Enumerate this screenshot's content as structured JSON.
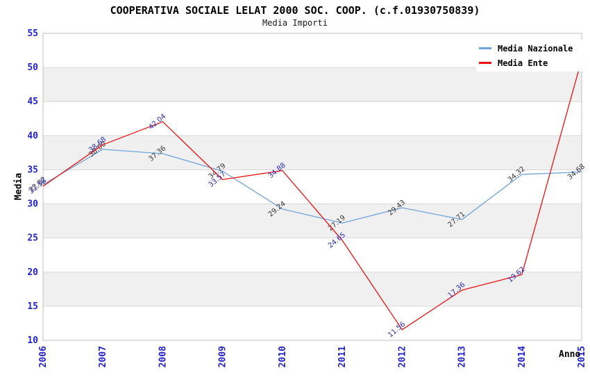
{
  "header": {
    "title": "COOPERATIVA SOCIALE LELAT 2000 SOC. COOP. (c.f.01930750839)",
    "subtitle": "Media Importi"
  },
  "legend": {
    "items": [
      {
        "label": "Media Nazionale"
      },
      {
        "label": "Media Ente"
      }
    ]
  },
  "chart_data": {
    "type": "line",
    "title": "COOPERATIVA SOCIALE LELAT 2000 SOC. COOP. (c.f.01930750839)",
    "subtitle": "Media Importi",
    "xlabel": "Anno",
    "ylabel": "Media",
    "x": [
      2006,
      2007,
      2008,
      2009,
      2010,
      2011,
      2012,
      2013,
      2014,
      2015
    ],
    "series": [
      {
        "name": "Media Nazionale",
        "color": "#6fa3dc",
        "label_color": "#333333",
        "values": [
          32.82,
          38.0,
          37.36,
          34.79,
          29.24,
          27.19,
          29.43,
          27.71,
          34.32,
          34.68
        ]
      },
      {
        "name": "Media Ente",
        "color": "#ee1111",
        "label_color": "#2a2ab8",
        "values": [
          32.58,
          38.68,
          42.04,
          33.57,
          34.88,
          24.65,
          11.56,
          17.36,
          19.62,
          51.17
        ]
      }
    ],
    "ylim": [
      10,
      55
    ],
    "ytick_step": 5,
    "grid": true,
    "legend_position": "top-right",
    "band_colors": [
      "#ffffff",
      "#f0f0f0"
    ],
    "colors": {
      "gridline": "#d9d9d9",
      "plot_border": "#c0c0c0",
      "tick_label": "#2222cc",
      "axis_label": "#000000"
    }
  }
}
